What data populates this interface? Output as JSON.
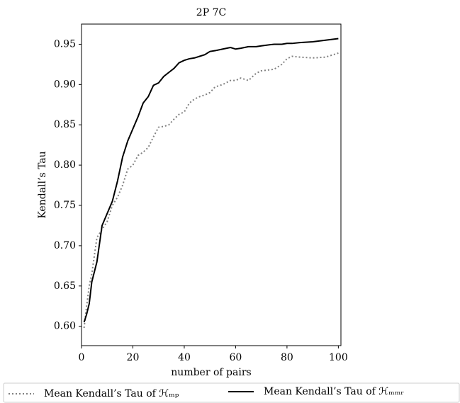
{
  "chart_data": {
    "type": "line",
    "title": "2P 7C",
    "x_label": "number of pairs",
    "y_label": "Kendall’s Tau",
    "x": [
      1,
      2,
      3,
      4,
      6,
      8,
      10,
      12,
      14,
      16,
      18,
      20,
      22,
      24,
      26,
      28,
      30,
      32,
      34,
      36,
      38,
      40,
      42,
      44,
      46,
      48,
      50,
      52,
      55,
      58,
      60,
      62,
      65,
      68,
      70,
      75,
      78,
      80,
      82,
      85,
      90,
      95,
      100
    ],
    "series": [
      {
        "name": "Mean Kendall’s Tau of ℋₘₚ",
        "color": "#808080",
        "style": "dotted",
        "values": [
          0.598,
          0.625,
          0.65,
          0.665,
          0.71,
          0.72,
          0.73,
          0.75,
          0.76,
          0.775,
          0.795,
          0.8,
          0.812,
          0.816,
          0.822,
          0.835,
          0.847,
          0.848,
          0.85,
          0.857,
          0.863,
          0.866,
          0.877,
          0.882,
          0.885,
          0.887,
          0.89,
          0.897,
          0.9,
          0.905,
          0.905,
          0.908,
          0.905,
          0.914,
          0.917,
          0.919,
          0.925,
          0.932,
          0.935,
          0.934,
          0.933,
          0.934,
          0.939
        ]
      },
      {
        "name": "Mean Kendall’s Tau of ℋₘₘᵣ",
        "color": "#000000",
        "style": "solid",
        "values": [
          0.605,
          0.615,
          0.628,
          0.655,
          0.68,
          0.725,
          0.74,
          0.755,
          0.78,
          0.81,
          0.83,
          0.845,
          0.86,
          0.877,
          0.885,
          0.899,
          0.902,
          0.91,
          0.915,
          0.92,
          0.927,
          0.93,
          0.932,
          0.933,
          0.935,
          0.937,
          0.941,
          0.942,
          0.944,
          0.946,
          0.944,
          0.945,
          0.947,
          0.947,
          0.948,
          0.95,
          0.95,
          0.951,
          0.951,
          0.952,
          0.953,
          0.955,
          0.957
        ]
      }
    ],
    "xlim": [
      0,
      101
    ],
    "ylim": [
      0.576,
      0.975
    ],
    "xticks": [
      0,
      20,
      40,
      60,
      80,
      100
    ],
    "yticks": [
      {
        "value": 0.6,
        "label": "0.60"
      },
      0.65,
      {
        "value": 0.7,
        "label": "0.70"
      },
      0.75,
      {
        "value": 0.8,
        "label": "0.80"
      },
      0.85,
      {
        "value": 0.9,
        "label": "0.90"
      },
      0.95
    ],
    "legend": "bottom",
    "grid": false
  }
}
